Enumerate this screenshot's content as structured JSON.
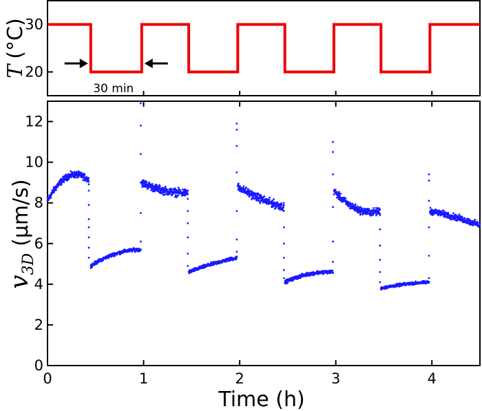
{
  "chart_data": [
    {
      "type": "line",
      "panel": "top",
      "ylabel_symbol": "T",
      "ylabel_unit": "(°C)",
      "ylim": [
        15,
        35
      ],
      "yticks": [
        20,
        30
      ],
      "xlim": [
        0,
        4.5
      ],
      "color": "#ee0000",
      "series": [
        {
          "x": [
            0,
            0.45,
            0.45,
            0.98,
            0.98,
            1.47,
            1.47,
            1.98,
            1.98,
            2.47,
            2.47,
            2.98,
            2.98,
            3.47,
            3.47,
            3.98,
            3.98,
            4.5
          ],
          "y": [
            30,
            30,
            20,
            20,
            30,
            30,
            20,
            20,
            30,
            30,
            20,
            20,
            30,
            30,
            20,
            20,
            30,
            30
          ]
        }
      ],
      "annotation": {
        "text": "30 min",
        "from_x": 0.45,
        "to_x": 0.98,
        "y": 21.5
      }
    },
    {
      "type": "scatter",
      "panel": "bottom",
      "xlabel": "Time (h)",
      "ylabel_symbol": "v",
      "ylabel_subscript": "3D",
      "ylabel_unit": "(μm/s)",
      "xlim": [
        0,
        4.5
      ],
      "ylim": [
        0,
        13
      ],
      "xticks": [
        0,
        1,
        2,
        3,
        4
      ],
      "yticks": [
        0,
        2,
        4,
        6,
        8,
        10,
        12
      ],
      "grid": false,
      "color": "#1a1aff",
      "segments": [
        {
          "x0": 0.0,
          "x1": 0.43,
          "y_start": 8.1,
          "y_end": 9.1,
          "y_mid": 9.3,
          "noise": 0.22
        },
        {
          "x0": 0.45,
          "x1": 0.97,
          "y_start": 4.9,
          "y_end": 5.7,
          "y_mid": 5.5,
          "noise": 0.12
        },
        {
          "x0": 0.98,
          "x1": 1.46,
          "y_start": 9.0,
          "y_end": 8.5,
          "y_mid": 8.6,
          "noise": 0.28
        },
        {
          "x0": 1.47,
          "x1": 1.97,
          "y_start": 4.6,
          "y_end": 5.3,
          "y_mid": 5.0,
          "noise": 0.12
        },
        {
          "x0": 1.98,
          "x1": 2.46,
          "y_start": 8.8,
          "y_end": 7.8,
          "y_mid": 8.2,
          "noise": 0.28
        },
        {
          "x0": 2.47,
          "x1": 2.97,
          "y_start": 4.1,
          "y_end": 4.6,
          "y_mid": 4.5,
          "noise": 0.12
        },
        {
          "x0": 2.98,
          "x1": 3.46,
          "y_start": 8.6,
          "y_end": 7.6,
          "y_mid": 7.7,
          "noise": 0.26
        },
        {
          "x0": 3.47,
          "x1": 3.97,
          "y_start": 3.8,
          "y_end": 4.1,
          "y_mid": 4.0,
          "noise": 0.1
        },
        {
          "x0": 3.98,
          "x1": 4.5,
          "y_start": 7.6,
          "y_end": 6.9,
          "y_mid": 7.3,
          "noise": 0.22
        }
      ],
      "transients": [
        {
          "x": 0.43,
          "y": [
            8.6,
            7.9,
            7.2,
            6.8,
            6.3,
            5.8,
            5.3
          ]
        },
        {
          "x": 0.97,
          "y": [
            6.1,
            7.5,
            9.0,
            10.4,
            11.8,
            12.9
          ]
        },
        {
          "x": 1.46,
          "y": [
            8.2,
            7.6,
            7.0,
            6.3,
            5.5,
            4.9
          ]
        },
        {
          "x": 1.97,
          "y": [
            5.6,
            6.2,
            7.6,
            9.5,
            10.8,
            11.6,
            11.9
          ]
        },
        {
          "x": 2.46,
          "y": [
            7.6,
            6.8,
            6.0,
            5.3,
            4.7,
            4.3
          ]
        },
        {
          "x": 2.97,
          "y": [
            5.1,
            6.1,
            7.8,
            9.4,
            10.5,
            11.0
          ]
        },
        {
          "x": 3.46,
          "y": [
            7.4,
            6.7,
            5.9,
            5.2,
            4.6,
            4.1
          ]
        },
        {
          "x": 3.97,
          "y": [
            4.3,
            5.4,
            6.8,
            8.1,
            9.1,
            9.4
          ]
        }
      ]
    }
  ]
}
